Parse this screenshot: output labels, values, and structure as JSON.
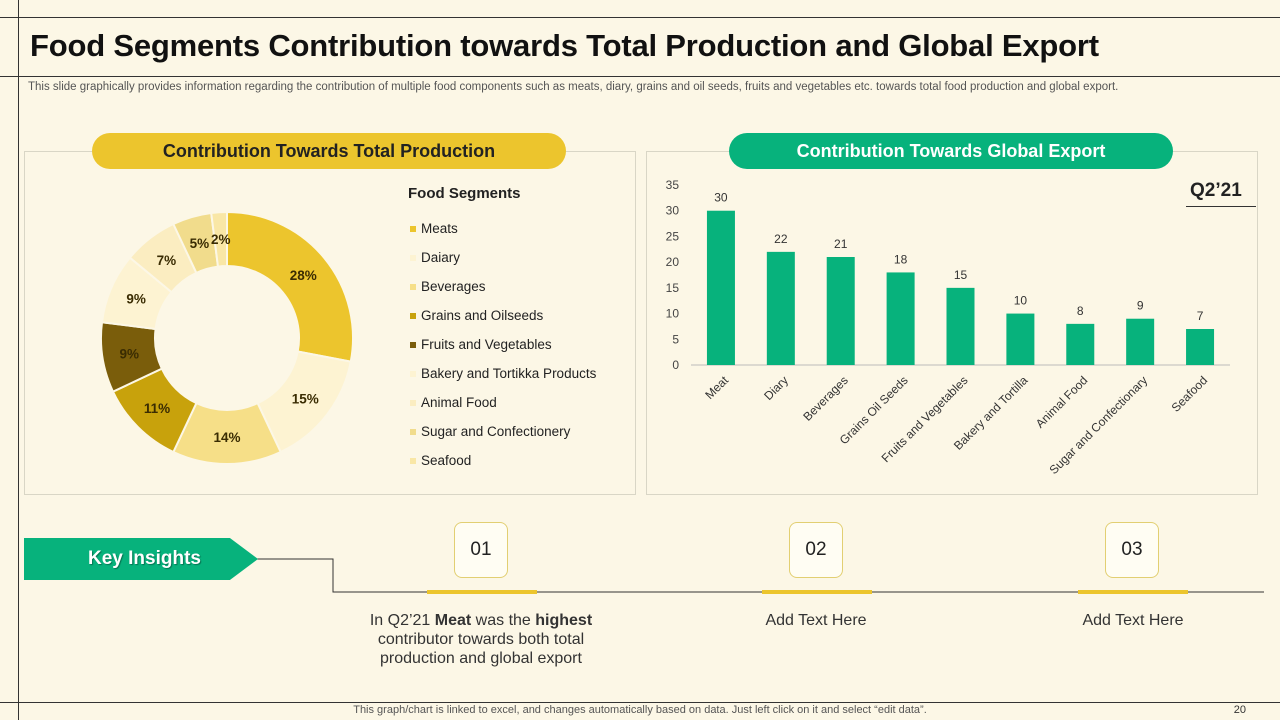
{
  "header": {
    "title": "Food Segments Contribution towards Total Production and Global Export",
    "subtitle": "This slide graphically provides information regarding the contribution of multiple food components such as meats, diary, grains and oil seeds, fruits and vegetables etc. towards total food production and global export."
  },
  "production": {
    "heading": "Contribution Towards Total Production",
    "legend_title": "Food Segments"
  },
  "export": {
    "heading": "Contribution Towards Global Export",
    "period": "Q2’21"
  },
  "chart_data": [
    {
      "type": "pie",
      "variant": "donut",
      "title": "Contribution Towards Total Production",
      "legend_title": "Food Segments",
      "labels": [
        "Meats",
        "Daiary",
        "Beverages",
        "Grains and Oilseeds",
        "Fruits and Vegetables",
        "Bakery and Tortikka Products",
        "Animal Food",
        "Sugar and Confectionery",
        "Seafood"
      ],
      "values": [
        28,
        15,
        14,
        11,
        9,
        9,
        7,
        5,
        2
      ],
      "value_labels": [
        "28%",
        "15%",
        "14%",
        "11%",
        "9%",
        "9%",
        "7%",
        "5%",
        "2%"
      ],
      "colors": [
        "#ecc52d",
        "#fdf3d2",
        "#f6df88",
        "#c8a20c",
        "#7a5d0b",
        "#fdf3d2",
        "#fbedc1",
        "#f1dc8c",
        "#f9e7a6"
      ],
      "legend_position": "right"
    },
    {
      "type": "bar",
      "title": "Contribution Towards Global Export",
      "categories": [
        "Meat",
        "Diary",
        "Beverages",
        "Grains Oil Seeds",
        "Fruits and Vegetables",
        "Bakery and Tortilla",
        "Animal Food",
        "Sugar and Confectionary",
        "Seafood"
      ],
      "values": [
        30,
        22,
        21,
        18,
        15,
        10,
        8,
        9,
        7
      ],
      "ylim": [
        0,
        35
      ],
      "yticks": [
        0,
        5,
        10,
        15,
        20,
        25,
        30,
        35
      ],
      "color": "#07b27c",
      "xlabel": "",
      "ylabel": "",
      "grid": false
    }
  ],
  "insights": {
    "banner": "Key Insights",
    "items": [
      {
        "number": "01",
        "text_parts": [
          {
            "text": "In Q2’21 ",
            "bold": false
          },
          {
            "text": "Meat",
            "bold": true
          },
          {
            "text": " was the ",
            "bold": false
          },
          {
            "text": "highest",
            "bold": true
          },
          {
            "text": " contributor towards both total production and global export",
            "bold": false
          }
        ]
      },
      {
        "number": "02",
        "text_parts": [
          {
            "text": "Add Text Here",
            "bold": false
          }
        ]
      },
      {
        "number": "03",
        "text_parts": [
          {
            "text": "Add Text Here",
            "bold": false
          }
        ]
      }
    ]
  },
  "footer": {
    "note": "This graph/chart is linked to excel, and changes automatically based on data. Just left click on it and select “edit data”.",
    "page_number": "20"
  }
}
